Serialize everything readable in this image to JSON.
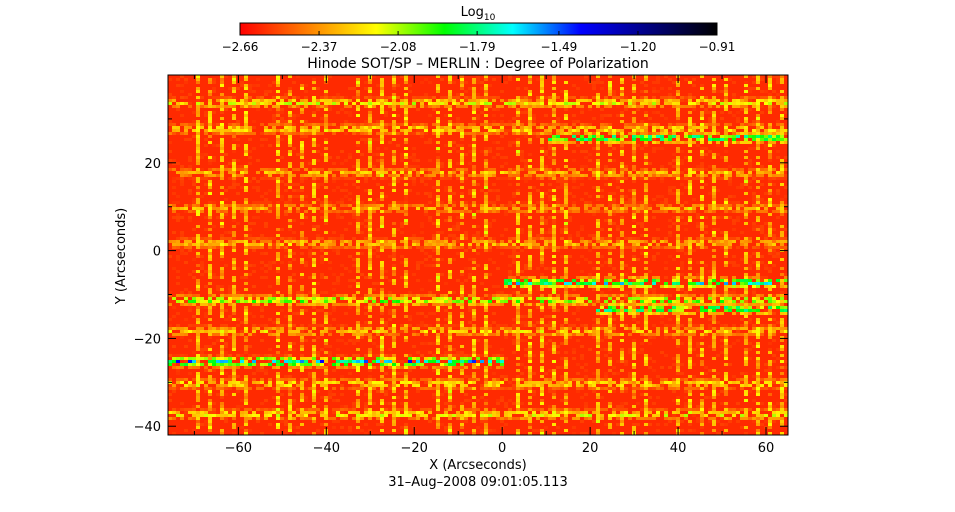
{
  "chart_data": {
    "type": "heatmap",
    "title": "Hinode SOT/SP – MERLIN : Degree of Polarization",
    "xlabel": "X (Arcseconds)",
    "ylabel": "Y (Arcseconds)",
    "footer": "31–Aug–2008 09:01:05.113",
    "xlim": [
      -76,
      65
    ],
    "ylim": [
      -42,
      40
    ],
    "x_ticks": [
      -60,
      -40,
      -20,
      0,
      20,
      40,
      60
    ],
    "y_ticks": [
      -40,
      -20,
      0,
      20
    ],
    "colorbar": {
      "label_base": "Log",
      "label_sub": "10",
      "min": -2.66,
      "max": -0.91,
      "tick_values": [
        -2.66,
        -2.37,
        -2.08,
        -1.79,
        -1.49,
        -1.2,
        -0.91
      ],
      "tick_labels": [
        "−2.66",
        "−2.37",
        "−2.08",
        "−1.79",
        "−1.49",
        "−1.20",
        "−0.91"
      ],
      "colormap": [
        "#ff0000",
        "#ff8000",
        "#ffff00",
        "#00ff00",
        "#00ffff",
        "#0000ff",
        "#000080",
        "#000000"
      ]
    },
    "field": {
      "background_value": -2.62,
      "stripe_rows": [
        {
          "y": 34,
          "x_from": -76,
          "x_to": 65,
          "peak": -2.05
        },
        {
          "y": 28,
          "x_from": -76,
          "x_to": 65,
          "peak": -2.1
        },
        {
          "y": 26,
          "x_from": 10,
          "x_to": 65,
          "peak": -1.6
        },
        {
          "y": 18,
          "x_from": -76,
          "x_to": 65,
          "peak": -2.2
        },
        {
          "y": 10,
          "x_from": -76,
          "x_to": 65,
          "peak": -2.25
        },
        {
          "y": 2,
          "x_from": -76,
          "x_to": 65,
          "peak": -2.2
        },
        {
          "y": -7,
          "x_from": 0,
          "x_to": 65,
          "peak": -1.55
        },
        {
          "y": -11,
          "x_from": -76,
          "x_to": 65,
          "peak": -1.85
        },
        {
          "y": -13,
          "x_from": 20,
          "x_to": 65,
          "peak": -1.6
        },
        {
          "y": -18,
          "x_from": -76,
          "x_to": 65,
          "peak": -2.15
        },
        {
          "y": -25,
          "x_from": -76,
          "x_to": 0,
          "peak": -1.45
        },
        {
          "y": -30,
          "x_from": -76,
          "x_to": 65,
          "peak": -2.1
        },
        {
          "y": -37,
          "x_from": -76,
          "x_to": 65,
          "peak": -2.05
        }
      ]
    }
  }
}
